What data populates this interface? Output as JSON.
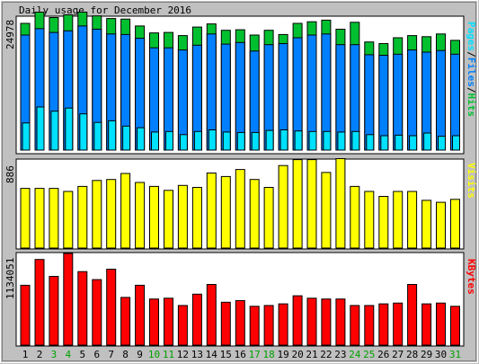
{
  "title": "Daily usage for December 2016",
  "colors": {
    "background": "#c0c0c0",
    "plot_background": "#ffffff",
    "hits": "#00c030",
    "files": "#0080ff",
    "pages": "#00e0ff",
    "visits": "#ffff00",
    "kbytes": "#ff0000",
    "weekday_label": "#000000",
    "weekend_label": "#00a000"
  },
  "chart_data": [
    {
      "type": "bar",
      "title": "Daily usage for December 2016",
      "x": [
        "1",
        "2",
        "3",
        "4",
        "5",
        "6",
        "7",
        "8",
        "9",
        "10",
        "11",
        "12",
        "13",
        "14",
        "15",
        "16",
        "17",
        "18",
        "19",
        "20",
        "21",
        "22",
        "23",
        "24",
        "25",
        "26",
        "27",
        "28",
        "29",
        "30",
        "31"
      ],
      "weekend_days": [
        "3",
        "4",
        "10",
        "11",
        "17",
        "18",
        "24",
        "25",
        "31"
      ],
      "ymax_label": "24978",
      "ylim": [
        0,
        24978
      ],
      "grid": false,
      "series_label_parts": [
        {
          "text": "Pages",
          "color": "#00e0ff"
        },
        {
          "text": "/",
          "color": "#000000"
        },
        {
          "text": "Files",
          "color": "#0080ff"
        },
        {
          "text": "/",
          "color": "#000000"
        },
        {
          "text": "Hits",
          "color": "#00c030"
        }
      ],
      "series": [
        {
          "name": "Hits",
          "color": "#00c030",
          "values": [
            23800,
            25900,
            24900,
            25400,
            25900,
            25200,
            24700,
            24600,
            23300,
            22000,
            22100,
            21500,
            23100,
            23700,
            22500,
            22600,
            21600,
            22500,
            21700,
            23800,
            24100,
            24400,
            22700,
            24000,
            20300,
            20000,
            21100,
            21500,
            21300,
            21800,
            20600
          ]
        },
        {
          "name": "Files",
          "color": "#0080ff",
          "values": [
            21600,
            22800,
            22100,
            22400,
            23300,
            22700,
            21800,
            21700,
            21000,
            19200,
            19200,
            18800,
            19700,
            21800,
            19900,
            20200,
            18600,
            19800,
            20000,
            21100,
            21600,
            21800,
            19800,
            19800,
            17900,
            17800,
            18000,
            18800,
            18400,
            18700,
            18000
          ]
        },
        {
          "name": "Pages",
          "color": "#00e0ff",
          "values": [
            5100,
            8100,
            7300,
            7900,
            6800,
            5200,
            5500,
            4500,
            4200,
            3400,
            3500,
            2900,
            3500,
            3800,
            3400,
            3300,
            3300,
            3700,
            3800,
            3600,
            3500,
            3500,
            3400,
            3500,
            2900,
            2700,
            2800,
            2700,
            3200,
            2600,
            2700
          ]
        }
      ]
    },
    {
      "type": "bar",
      "x": [
        "1",
        "2",
        "3",
        "4",
        "5",
        "6",
        "7",
        "8",
        "9",
        "10",
        "11",
        "12",
        "13",
        "14",
        "15",
        "16",
        "17",
        "18",
        "19",
        "20",
        "21",
        "22",
        "23",
        "24",
        "25",
        "26",
        "27",
        "28",
        "29",
        "30",
        "31"
      ],
      "ymax_label": "886",
      "ylim": [
        0,
        886
      ],
      "grid": false,
      "series_label_parts": [
        {
          "text": "Visits",
          "color": "#ffff00"
        }
      ],
      "series": [
        {
          "name": "Visits",
          "color": "#ffff00",
          "values": [
            600,
            600,
            600,
            570,
            620,
            680,
            690,
            750,
            660,
            620,
            580,
            630,
            610,
            755,
            720,
            790,
            690,
            610,
            830,
            890,
            890,
            760,
            900,
            620,
            570,
            520,
            570,
            570,
            480,
            460,
            490
          ]
        }
      ]
    },
    {
      "type": "bar",
      "x": [
        "1",
        "2",
        "3",
        "4",
        "5",
        "6",
        "7",
        "8",
        "9",
        "10",
        "11",
        "12",
        "13",
        "14",
        "15",
        "16",
        "17",
        "18",
        "19",
        "20",
        "21",
        "22",
        "23",
        "24",
        "25",
        "26",
        "27",
        "28",
        "29",
        "30",
        "31"
      ],
      "ymax_label": "1134051",
      "ylim": [
        0,
        1134051
      ],
      "grid": false,
      "series_label_parts": [
        {
          "text": "KBytes",
          "color": "#ff0000"
        }
      ],
      "series": [
        {
          "name": "KBytes",
          "color": "#ff0000",
          "values": [
            740000,
            1060000,
            850000,
            1134051,
            910000,
            810000,
            940000,
            590000,
            740000,
            570000,
            580000,
            490000,
            630000,
            750000,
            530000,
            550000,
            480000,
            490000,
            510000,
            610000,
            580000,
            570000,
            570000,
            490000,
            490000,
            510000,
            520000,
            750000,
            510000,
            520000,
            480000
          ]
        }
      ]
    }
  ]
}
